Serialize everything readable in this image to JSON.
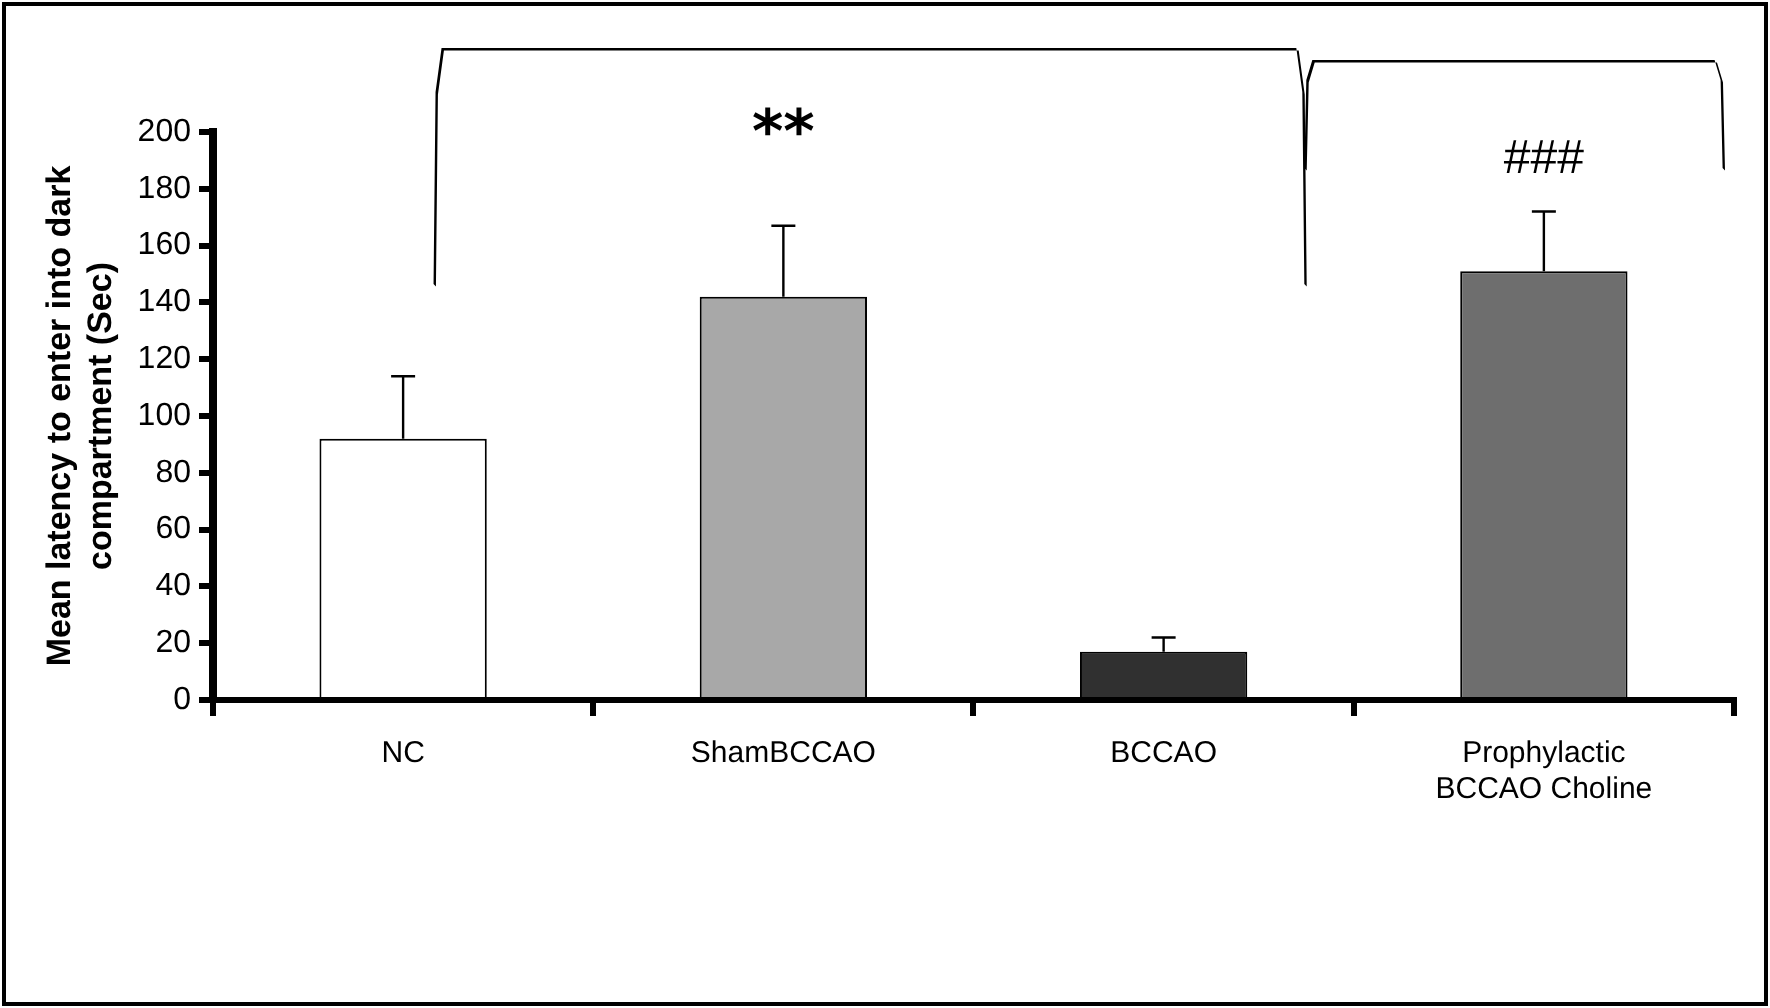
{
  "chart_data": {
    "type": "bar",
    "ylabel": "Mean latency to enter into dark compartment (Sec)",
    "categories": [
      "NC",
      "ShamBCCAO",
      "BCCAO",
      "Prophylactic BCCAO Choline"
    ],
    "values": [
      92,
      142,
      17,
      151
    ],
    "colors": [
      "#ffffff",
      "#a8a8a8",
      "#303030",
      "#6e6e6e"
    ],
    "errors": [
      [
        92,
        114
      ],
      [
        142,
        167
      ],
      [
        17,
        22
      ],
      [
        151,
        172
      ]
    ],
    "ylim": [
      0,
      200
    ],
    "yticks": [
      0,
      20,
      40,
      60,
      80,
      100,
      120,
      140,
      160,
      180,
      200
    ],
    "grid": false,
    "legend": false,
    "annotations": [
      "**",
      "###"
    ]
  }
}
